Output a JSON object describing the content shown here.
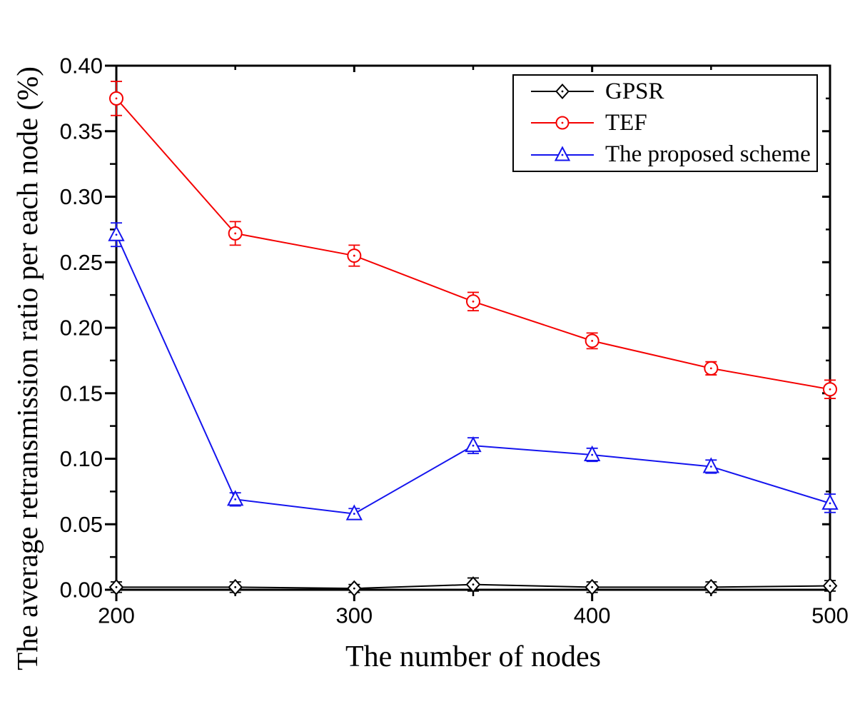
{
  "figure": {
    "background": "#ffffff",
    "axis_color": "#000000"
  },
  "chart_data": {
    "type": "line",
    "title": "",
    "xlabel": "The number of nodes",
    "ylabel": "The average retransmission ratio per each node (%)",
    "xlim": [
      200,
      500
    ],
    "ylim": [
      0,
      0.4
    ],
    "x_major_ticks": [
      200,
      300,
      400,
      500
    ],
    "x_minor_ticks": [
      250,
      350,
      450
    ],
    "y_major_ticks": [
      0.0,
      0.05,
      0.1,
      0.15,
      0.2,
      0.25,
      0.3,
      0.35,
      0.4
    ],
    "y_minor_ticks": [
      0.025,
      0.075,
      0.125,
      0.175,
      0.225,
      0.275,
      0.325,
      0.375
    ],
    "grid": false,
    "legend_position": "top-right",
    "x": [
      200,
      250,
      300,
      350,
      400,
      450,
      500
    ],
    "series": [
      {
        "name": "GPSR",
        "color": "#000000",
        "marker": "diamond",
        "values": [
          0.002,
          0.002,
          0.001,
          0.004,
          0.002,
          0.002,
          0.003
        ],
        "errors": [
          0.004,
          0.004,
          0.003,
          0.005,
          0.004,
          0.004,
          0.004
        ]
      },
      {
        "name": "TEF",
        "color": "#f40000",
        "marker": "circle",
        "values": [
          0.375,
          0.272,
          0.255,
          0.22,
          0.19,
          0.169,
          0.153
        ],
        "errors": [
          0.013,
          0.009,
          0.008,
          0.007,
          0.006,
          0.005,
          0.007
        ]
      },
      {
        "name": "The proposed scheme",
        "color": "#1414ee",
        "marker": "triangle",
        "values": [
          0.271,
          0.069,
          0.058,
          0.11,
          0.103,
          0.094,
          0.066
        ],
        "errors": [
          0.009,
          0.005,
          0.004,
          0.006,
          0.005,
          0.005,
          0.007
        ]
      }
    ]
  }
}
